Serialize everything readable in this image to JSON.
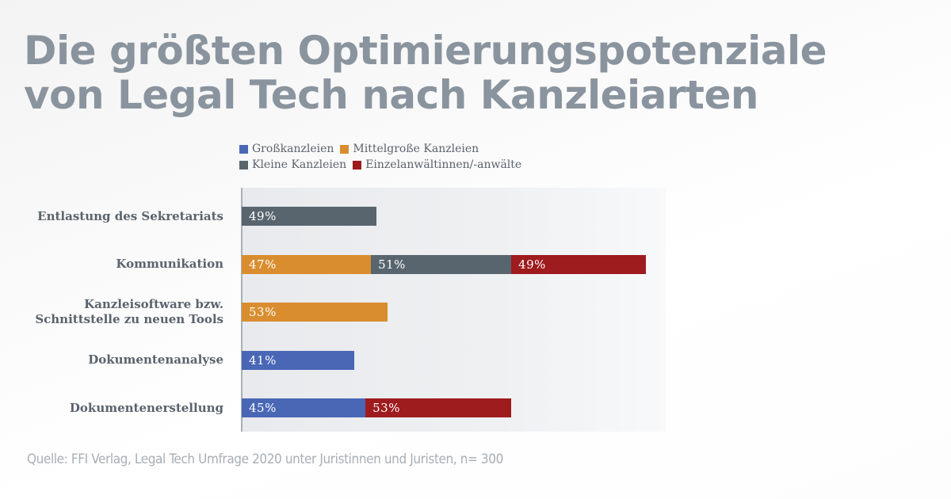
{
  "title_lines": [
    "Die größten Optimierungspotenziale",
    "von Legal Tech nach Kanzleiarten"
  ],
  "source": "Quelle: FFI Verlag, Legal Tech Umfrage 2020 unter Juristinnen und Juristen, n= 300",
  "chart_data": {
    "type": "bar",
    "orientation": "horizontal",
    "stacked": true,
    "title": "Die größten Optimierungspotenziale von Legal Tech nach Kanzleiarten",
    "xlabel": "",
    "ylabel": "",
    "grid": false,
    "legend_position": "top",
    "value_unit": "%",
    "categories": [
      [
        "Entlastung des Sekretariats"
      ],
      [
        "Kommunikation"
      ],
      [
        "Kanzleisoftware bzw.",
        "Schnittstelle zu neuen Tools"
      ],
      [
        "Dokumentenanalyse"
      ],
      [
        "Dokumentenerstellung"
      ]
    ],
    "series": [
      {
        "name": "Großkanzleien",
        "color": "#4a67b6",
        "values": [
          null,
          null,
          null,
          41,
          45
        ]
      },
      {
        "name": "Mittelgroße Kanzleien",
        "color": "#d98d2e",
        "values": [
          null,
          47,
          53,
          null,
          null
        ]
      },
      {
        "name": "Kleine Kanzleien",
        "color": "#58656f",
        "values": [
          49,
          51,
          null,
          null,
          null
        ]
      },
      {
        "name": "Einzelanwältinnen/-anwälte",
        "color": "#9e1b1e",
        "values": [
          null,
          49,
          null,
          null,
          53
        ]
      }
    ],
    "legend_rows": [
      [
        0,
        1
      ],
      [
        2,
        3
      ]
    ]
  }
}
